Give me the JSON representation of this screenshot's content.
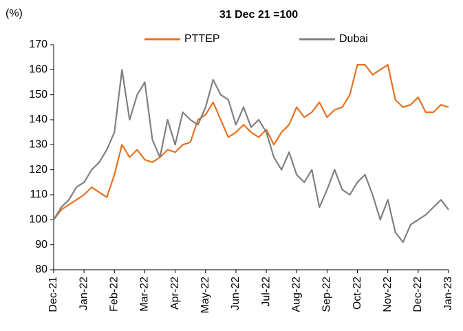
{
  "chart_data": {
    "type": "line",
    "title": "31 Dec 21 =100",
    "y_label": "(%)",
    "categories": [
      "Dec-21",
      null,
      null,
      null,
      "Jan-22",
      null,
      null,
      null,
      "Feb-22",
      null,
      null,
      null,
      "Mar-22",
      null,
      null,
      null,
      "Apr-22",
      null,
      null,
      null,
      "May-22",
      null,
      null,
      null,
      "Jun-22",
      null,
      null,
      null,
      "Jul-22",
      null,
      null,
      null,
      "Aug-22",
      null,
      null,
      null,
      "Sep-22",
      null,
      null,
      null,
      "Oct-22",
      null,
      null,
      null,
      "Nov-22",
      null,
      null,
      null,
      "Dec-22",
      null,
      null,
      null,
      "Jan-23"
    ],
    "series": [
      {
        "name": "PTTEP",
        "color": "#e8711f",
        "values": [
          100,
          104,
          106,
          108,
          110,
          113,
          111,
          109,
          118,
          130,
          125,
          128,
          124,
          123,
          125,
          128,
          127,
          130,
          131,
          140,
          142,
          147,
          140,
          133,
          135,
          138,
          135,
          133,
          136,
          130,
          135,
          138,
          145,
          141,
          143,
          147,
          141,
          144,
          145,
          150,
          162,
          162,
          158,
          160,
          162,
          148,
          145,
          146,
          149,
          143,
          143,
          146,
          145
        ]
      },
      {
        "name": "Dubai",
        "color": "#808080",
        "values": [
          100,
          105,
          108,
          113,
          115,
          120,
          123,
          128,
          135,
          160,
          140,
          150,
          155,
          132,
          125,
          140,
          130,
          143,
          140,
          138,
          145,
          156,
          150,
          148,
          138,
          145,
          137,
          140,
          135,
          125,
          120,
          127,
          118,
          115,
          120,
          105,
          112,
          120,
          112,
          110,
          115,
          118,
          110,
          100,
          108,
          95,
          91,
          98,
          100,
          102,
          105,
          108,
          104
        ]
      }
    ],
    "ylim": [
      80,
      170
    ],
    "yticks": [
      80,
      90,
      100,
      110,
      120,
      130,
      140,
      150,
      160,
      170
    ],
    "grid": false,
    "legend": "top"
  }
}
